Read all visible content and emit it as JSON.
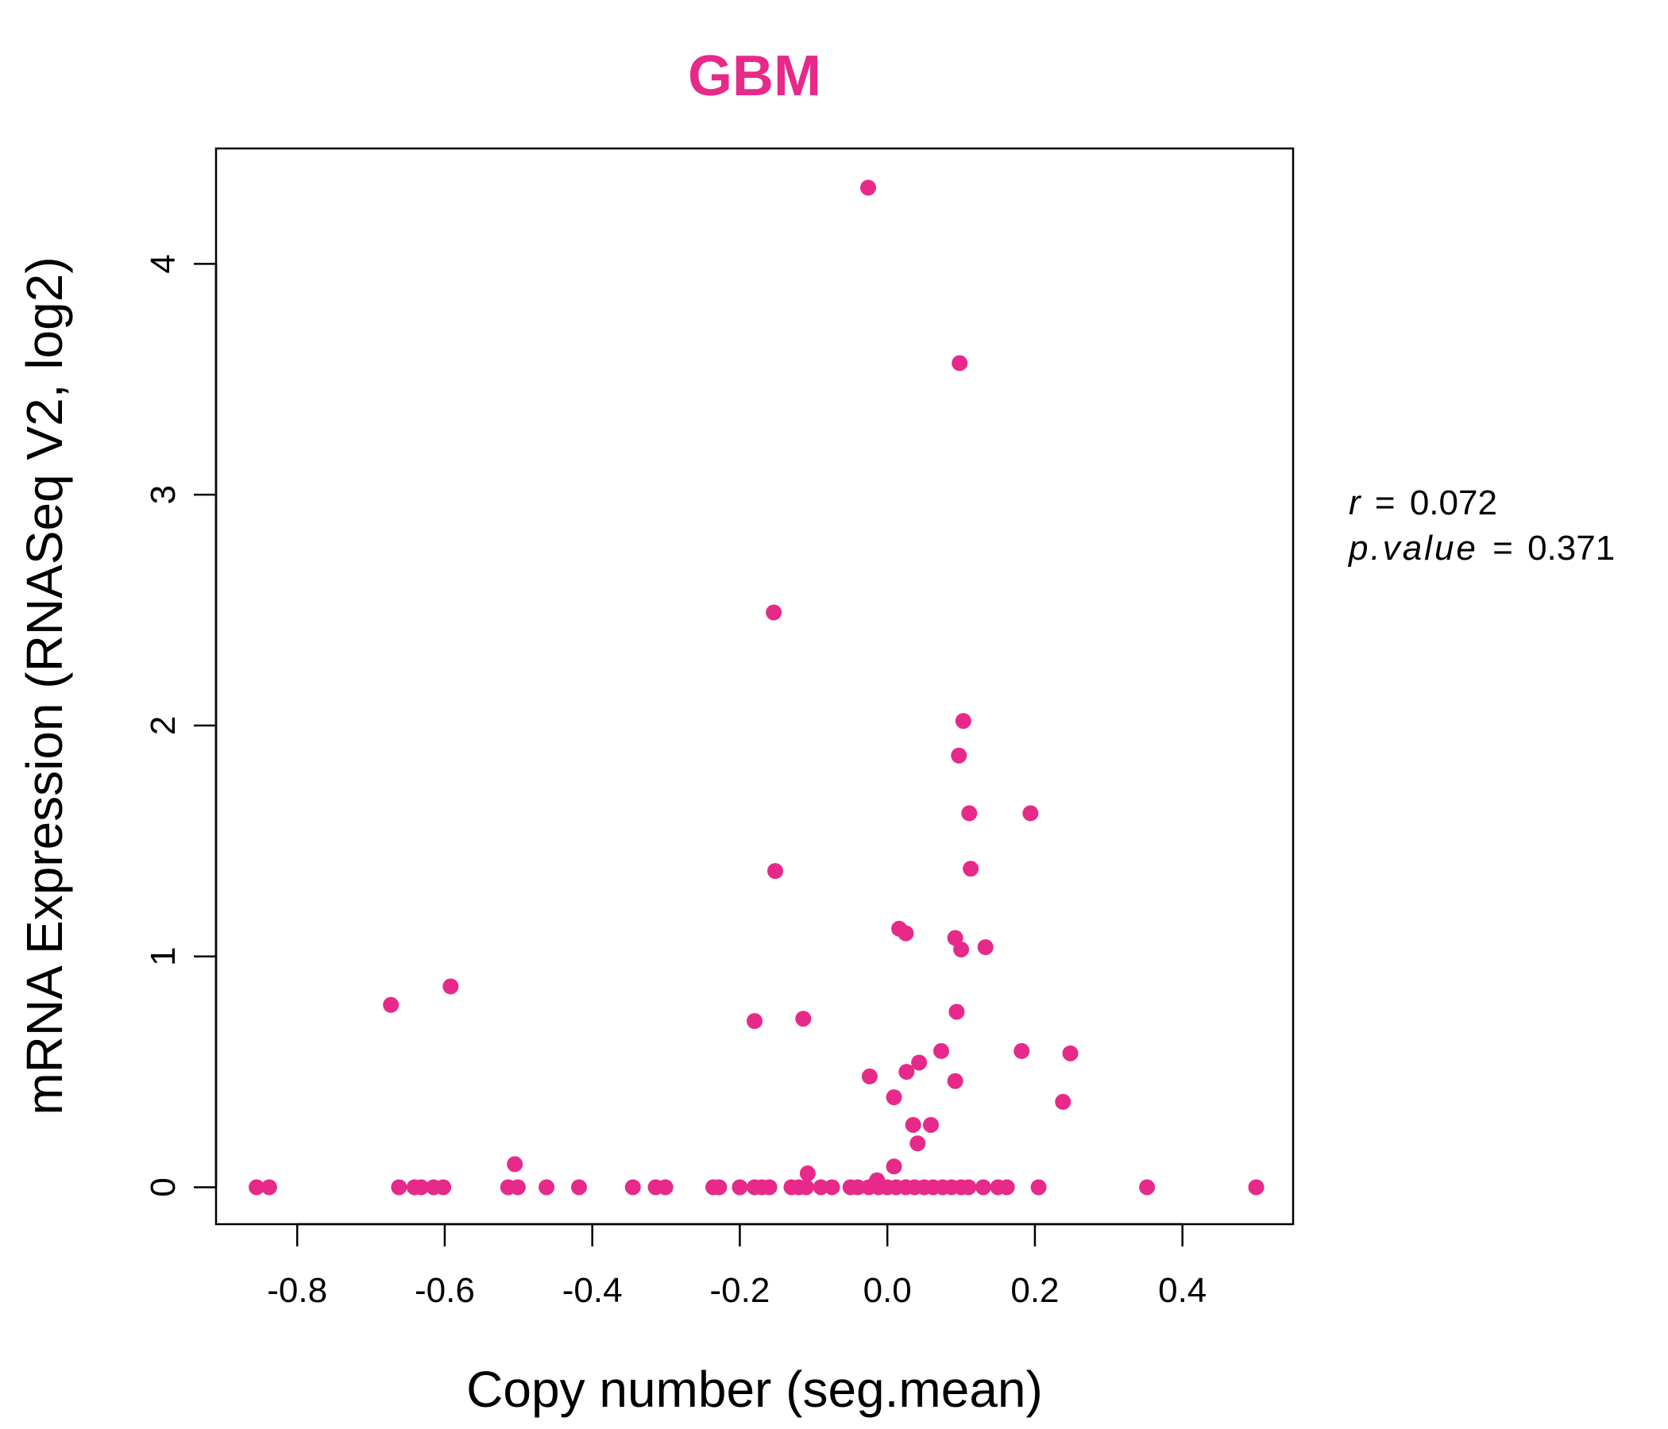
{
  "colors": {
    "accent": "#E7298A",
    "axis": "#000000"
  },
  "chart_data": {
    "type": "scatter",
    "title": "GBM",
    "xlabel": "Copy number (seg.mean)",
    "ylabel": "mRNA Expression (RNASeq V2, log2)",
    "xlim": [
      -0.91,
      0.55
    ],
    "ylim": [
      -0.16,
      4.5
    ],
    "xticks": [
      -0.8,
      -0.6,
      -0.4,
      -0.2,
      0.0,
      0.2,
      0.4
    ],
    "xtick_labels": [
      "-0.8",
      "-0.6",
      "-0.4",
      "-0.2",
      "0.0",
      "0.2",
      "0.4"
    ],
    "yticks": [
      0,
      1,
      2,
      3,
      4
    ],
    "ytick_labels": [
      "0",
      "1",
      "2",
      "3",
      "4"
    ],
    "grid": false,
    "legend": "none",
    "annotation": {
      "r_label": "r",
      "r_value": "0.072",
      "p_label": "p.value",
      "p_value": "0.371"
    },
    "points": [
      {
        "x": -0.855,
        "y": 0
      },
      {
        "x": -0.838,
        "y": 0
      },
      {
        "x": -0.662,
        "y": 0
      },
      {
        "x": -0.641,
        "y": 0
      },
      {
        "x": -0.632,
        "y": 0
      },
      {
        "x": -0.615,
        "y": 0
      },
      {
        "x": -0.602,
        "y": 0
      },
      {
        "x": -0.673,
        "y": 0.79
      },
      {
        "x": -0.592,
        "y": 0.87
      },
      {
        "x": -0.514,
        "y": 0
      },
      {
        "x": -0.501,
        "y": 0
      },
      {
        "x": -0.505,
        "y": 0.1
      },
      {
        "x": -0.462,
        "y": 0
      },
      {
        "x": -0.418,
        "y": 0
      },
      {
        "x": -0.345,
        "y": 0
      },
      {
        "x": -0.314,
        "y": 0
      },
      {
        "x": -0.301,
        "y": 0
      },
      {
        "x": -0.236,
        "y": 0
      },
      {
        "x": -0.228,
        "y": 0
      },
      {
        "x": -0.2,
        "y": 0
      },
      {
        "x": -0.18,
        "y": 0
      },
      {
        "x": -0.17,
        "y": 0
      },
      {
        "x": -0.16,
        "y": 0
      },
      {
        "x": -0.13,
        "y": 0
      },
      {
        "x": -0.12,
        "y": 0
      },
      {
        "x": -0.11,
        "y": 0
      },
      {
        "x": -0.09,
        "y": 0
      },
      {
        "x": -0.075,
        "y": 0
      },
      {
        "x": -0.05,
        "y": 0
      },
      {
        "x": -0.04,
        "y": 0
      },
      {
        "x": -0.025,
        "y": 0
      },
      {
        "x": -0.012,
        "y": 0
      },
      {
        "x": 0.0,
        "y": 0
      },
      {
        "x": 0.012,
        "y": 0
      },
      {
        "x": 0.025,
        "y": 0
      },
      {
        "x": 0.037,
        "y": 0
      },
      {
        "x": 0.05,
        "y": 0
      },
      {
        "x": 0.062,
        "y": 0
      },
      {
        "x": 0.075,
        "y": 0
      },
      {
        "x": 0.087,
        "y": 0
      },
      {
        "x": 0.1,
        "y": 0
      },
      {
        "x": 0.11,
        "y": 0
      },
      {
        "x": 0.13,
        "y": 0
      },
      {
        "x": 0.15,
        "y": 0
      },
      {
        "x": 0.162,
        "y": 0
      },
      {
        "x": 0.205,
        "y": 0
      },
      {
        "x": 0.352,
        "y": 0
      },
      {
        "x": 0.5,
        "y": 0
      },
      {
        "x": -0.026,
        "y": 4.33
      },
      {
        "x": 0.098,
        "y": 3.57
      },
      {
        "x": -0.154,
        "y": 2.49
      },
      {
        "x": 0.103,
        "y": 2.02
      },
      {
        "x": 0.097,
        "y": 1.87
      },
      {
        "x": 0.111,
        "y": 1.62
      },
      {
        "x": 0.194,
        "y": 1.62
      },
      {
        "x": 0.113,
        "y": 1.38
      },
      {
        "x": -0.152,
        "y": 1.37
      },
      {
        "x": 0.016,
        "y": 1.12
      },
      {
        "x": 0.025,
        "y": 1.1
      },
      {
        "x": 0.092,
        "y": 1.08
      },
      {
        "x": 0.133,
        "y": 1.04
      },
      {
        "x": 0.1,
        "y": 1.03
      },
      {
        "x": 0.094,
        "y": 0.76
      },
      {
        "x": -0.114,
        "y": 0.73
      },
      {
        "x": -0.18,
        "y": 0.72
      },
      {
        "x": 0.073,
        "y": 0.59
      },
      {
        "x": 0.182,
        "y": 0.59
      },
      {
        "x": 0.248,
        "y": 0.58
      },
      {
        "x": 0.043,
        "y": 0.54
      },
      {
        "x": 0.026,
        "y": 0.5
      },
      {
        "x": -0.024,
        "y": 0.48
      },
      {
        "x": 0.092,
        "y": 0.46
      },
      {
        "x": 0.009,
        "y": 0.39
      },
      {
        "x": 0.238,
        "y": 0.37
      },
      {
        "x": 0.035,
        "y": 0.27
      },
      {
        "x": 0.059,
        "y": 0.27
      },
      {
        "x": 0.041,
        "y": 0.19
      },
      {
        "x": 0.009,
        "y": 0.09
      },
      {
        "x": -0.108,
        "y": 0.06
      },
      {
        "x": -0.014,
        "y": 0.03
      }
    ]
  }
}
